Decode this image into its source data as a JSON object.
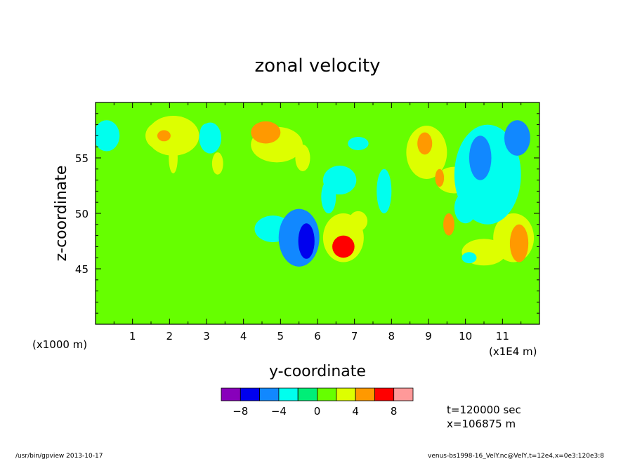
{
  "chart_data": {
    "type": "heatmap",
    "title": "zonal velocity",
    "xlabel": "y-coordinate",
    "ylabel": "z-coordinate",
    "x_unit_left": "(x1000 m)",
    "x_unit_right": "(x1E4 m)",
    "xlim": [
      0,
      12
    ],
    "ylim": [
      40,
      60
    ],
    "x_ticks": [
      "1",
      "2",
      "3",
      "4",
      "5",
      "6",
      "7",
      "8",
      "9",
      "10",
      "11"
    ],
    "x_tick_values": [
      1,
      2,
      3,
      4,
      5,
      6,
      7,
      8,
      9,
      10,
      11
    ],
    "y_ticks": [
      "45",
      "50",
      "55"
    ],
    "y_tick_values": [
      45,
      50,
      55
    ],
    "background_level": 0,
    "colorbar": {
      "colors": [
        "#8800bb",
        "#0000ee",
        "#1188ff",
        "#00ffee",
        "#00ee77",
        "#66ff00",
        "#ddff00",
        "#ff9900",
        "#ff0000",
        "#ff9999"
      ],
      "boundaries": [
        -10,
        -8,
        -6,
        -4,
        -2,
        0,
        2,
        4,
        6,
        8,
        10
      ],
      "tick_labels": [
        "-8",
        "-4",
        "0",
        "4",
        "8"
      ],
      "tick_values": [
        -8,
        -4,
        0,
        4,
        8
      ]
    },
    "features": [
      {
        "y": 5.7,
        "z": 47.5,
        "w": 0.22,
        "h": 1.6,
        "value": -7
      },
      {
        "y": 5.5,
        "z": 47.8,
        "w": 0.55,
        "h": 2.6,
        "value": -4.5
      },
      {
        "y": 4.8,
        "z": 48.6,
        "w": 0.5,
        "h": 1.2,
        "value": -3
      },
      {
        "y": 6.7,
        "z": 47.0,
        "w": 0.3,
        "h": 1.0,
        "value": 7
      },
      {
        "y": 6.7,
        "z": 47.8,
        "w": 0.55,
        "h": 2.2,
        "value": 3
      },
      {
        "y": 7.1,
        "z": 49.3,
        "w": 0.25,
        "h": 0.9,
        "value": 3
      },
      {
        "y": 1.8,
        "z": 57.0,
        "w": 0.45,
        "h": 1.3,
        "value": 3
      },
      {
        "y": 1.85,
        "z": 57.0,
        "w": 0.18,
        "h": 0.5,
        "value": 5
      },
      {
        "y": 2.1,
        "z": 55.0,
        "w": 0.12,
        "h": 1.4,
        "value": 2
      },
      {
        "y": 4.6,
        "z": 57.3,
        "w": 0.4,
        "h": 1.0,
        "value": 5
      },
      {
        "y": 4.9,
        "z": 56.2,
        "w": 0.7,
        "h": 1.6,
        "value": 2.5
      },
      {
        "y": 5.6,
        "z": 55.0,
        "w": 0.2,
        "h": 1.2,
        "value": 2.5
      },
      {
        "y": 2.1,
        "z": 57.0,
        "w": 0.7,
        "h": 1.8,
        "value": 2.2
      },
      {
        "y": 6.6,
        "z": 53.0,
        "w": 0.45,
        "h": 1.3,
        "value": -2.5
      },
      {
        "y": 7.1,
        "z": 56.3,
        "w": 0.28,
        "h": 0.6,
        "value": -2.5
      },
      {
        "y": 8.9,
        "z": 56.3,
        "w": 0.2,
        "h": 1.0,
        "value": 5
      },
      {
        "y": 8.95,
        "z": 55.5,
        "w": 0.55,
        "h": 2.4,
        "value": 2.5
      },
      {
        "y": 9.3,
        "z": 53.2,
        "w": 0.12,
        "h": 0.8,
        "value": 4.5
      },
      {
        "y": 9.55,
        "z": 49.0,
        "w": 0.15,
        "h": 1.0,
        "value": 5
      },
      {
        "y": 10.4,
        "z": 55.0,
        "w": 0.3,
        "h": 2.0,
        "value": -5
      },
      {
        "y": 10.6,
        "z": 53.5,
        "w": 0.9,
        "h": 4.5,
        "value": -3
      },
      {
        "y": 11.4,
        "z": 56.8,
        "w": 0.35,
        "h": 1.6,
        "value": -4.5
      },
      {
        "y": 11.45,
        "z": 47.3,
        "w": 0.25,
        "h": 1.7,
        "value": 5
      },
      {
        "y": 11.3,
        "z": 47.8,
        "w": 0.55,
        "h": 2.2,
        "value": 2.5
      },
      {
        "y": 0.3,
        "z": 57.0,
        "w": 0.35,
        "h": 1.4,
        "value": -2.5
      },
      {
        "y": 3.0,
        "z": 57.2,
        "w": 0.18,
        "h": 0.9,
        "value": -4
      },
      {
        "y": 3.1,
        "z": 56.8,
        "w": 0.3,
        "h": 1.4,
        "value": -2.4
      },
      {
        "y": 3.3,
        "z": 54.5,
        "w": 0.15,
        "h": 1.0,
        "value": 2.2
      },
      {
        "y": 10.5,
        "z": 46.5,
        "w": 0.6,
        "h": 1.2,
        "value": 2
      },
      {
        "y": 10.1,
        "z": 46.0,
        "w": 0.2,
        "h": 0.5,
        "value": -3
      },
      {
        "y": 6.3,
        "z": 51.5,
        "w": 0.2,
        "h": 1.5,
        "value": -2.2
      },
      {
        "y": 7.8,
        "z": 52.0,
        "w": 0.2,
        "h": 2.0,
        "value": -2.2
      },
      {
        "y": 9.7,
        "z": 53.0,
        "w": 0.5,
        "h": 1.2,
        "value": 2.2
      },
      {
        "y": 10.0,
        "z": 50.5,
        "w": 0.3,
        "h": 1.4,
        "value": -2.2
      }
    ]
  },
  "info": {
    "time": "t=120000 sec",
    "position": "x=106875 m"
  },
  "footer": {
    "left": "/usr/bin/gpview  2013-10-17",
    "right": "venus-bs1998-16_VelY.nc@VelY,t=12e4,x=0e3:120e3:8"
  }
}
